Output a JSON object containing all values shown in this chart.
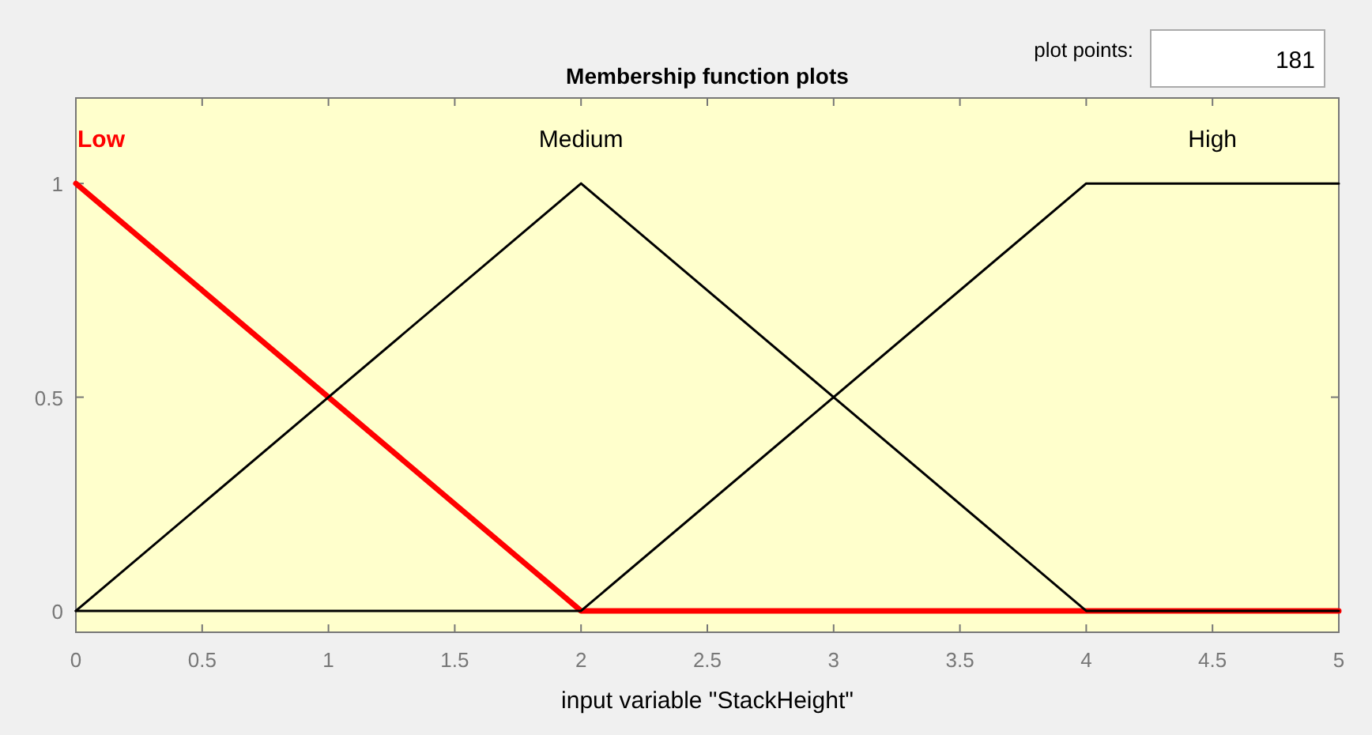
{
  "chart_data": {
    "type": "line",
    "title": "Membership function plots",
    "xlabel": "input variable \"StackHeight\"",
    "annotations": [
      "plot points:",
      "181"
    ],
    "xlim": [
      0,
      5
    ],
    "xticks": [
      0,
      0.5,
      1,
      1.5,
      2,
      2.5,
      3,
      3.5,
      4,
      4.5,
      5
    ],
    "ylim": [
      -0.05,
      1.2
    ],
    "yticks": [
      0,
      0.5,
      1
    ],
    "grid": false,
    "marker": "none",
    "line_style": "solid",
    "series": [
      {
        "name": "Low",
        "color": "#ff0000",
        "x": [
          0,
          2,
          5
        ],
        "values": [
          1,
          0,
          0
        ]
      },
      {
        "name": "Medium",
        "color": "#000000",
        "x": [
          0,
          2,
          4,
          5
        ],
        "values": [
          0,
          1,
          0,
          0
        ]
      },
      {
        "name": "High",
        "color": "#000000",
        "x": [
          0,
          2,
          4,
          5
        ],
        "values": [
          0,
          0,
          1,
          1
        ]
      }
    ]
  }
}
